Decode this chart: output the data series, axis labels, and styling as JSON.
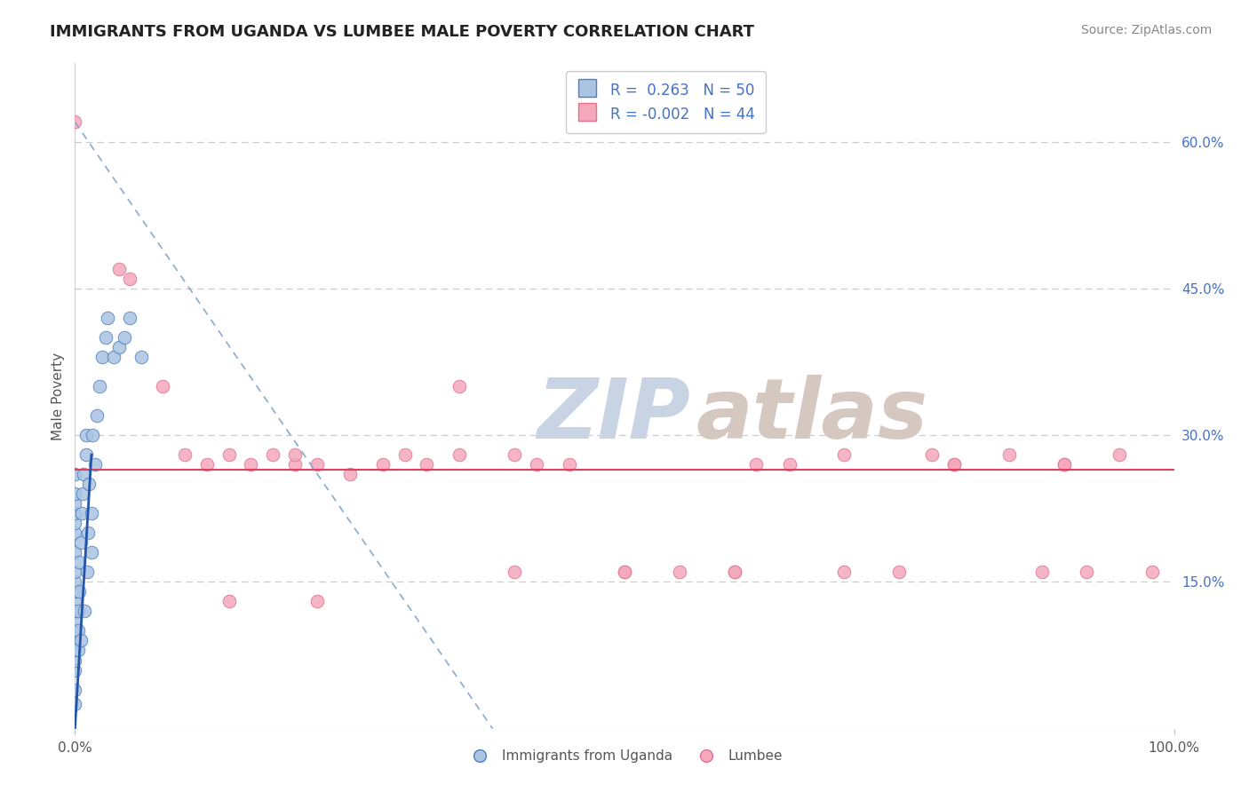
{
  "title": "IMMIGRANTS FROM UGANDA VS LUMBEE MALE POVERTY CORRELATION CHART",
  "source_text": "Source: ZipAtlas.com",
  "ylabel": "Male Poverty",
  "xlim": [
    0,
    1.0
  ],
  "ylim": [
    0,
    0.68
  ],
  "y_tick_vals_right": [
    0.6,
    0.45,
    0.3,
    0.15
  ],
  "legend_labels": [
    "Immigrants from Uganda",
    "Lumbee"
  ],
  "R_uganda": "0.263",
  "N_uganda": "50",
  "R_lumbee": "-0.002",
  "N_lumbee": "44",
  "blue_color": "#aac4e2",
  "pink_color": "#f5a8bc",
  "blue_edge_color": "#5080c0",
  "pink_edge_color": "#e07090",
  "trendline_blue_color": "#2255aa",
  "trendline_dashed_color": "#8aaad0",
  "trendline_pink_color": "#e04060",
  "watermark_zip_color": "#c8d4e4",
  "watermark_atlas_color": "#d4c8c0",
  "title_color": "#222222",
  "axis_label_color": "#555555",
  "right_tick_color": "#4472c4",
  "source_color": "#888888",
  "background_color": "#ffffff",
  "grid_color": "#cccccc",
  "pink_hline_y": 0.265,
  "blue_trend_solid_x0": 0.0,
  "blue_trend_solid_x1": 0.015,
  "blue_trend_solid_y0": 0.0,
  "blue_trend_solid_y1": 0.28,
  "blue_trend_dash_x0": 0.0,
  "blue_trend_dash_x1": 0.38,
  "blue_trend_dash_y0": 0.62,
  "blue_trend_dash_y1": 0.0,
  "blue_scatter_x": [
    0.0,
    0.0,
    0.0,
    0.0,
    0.0,
    0.0,
    0.0,
    0.0,
    0.0,
    0.0,
    0.0,
    0.0,
    0.0,
    0.0,
    0.0,
    0.0,
    0.0,
    0.0,
    0.0,
    0.0,
    0.003,
    0.003,
    0.003,
    0.004,
    0.004,
    0.005,
    0.005,
    0.006,
    0.007,
    0.008,
    0.009,
    0.01,
    0.01,
    0.011,
    0.012,
    0.013,
    0.015,
    0.015,
    0.016,
    0.018,
    0.02,
    0.022,
    0.025,
    0.028,
    0.03,
    0.035,
    0.04,
    0.045,
    0.05,
    0.06
  ],
  "blue_scatter_y": [
    0.025,
    0.04,
    0.06,
    0.07,
    0.08,
    0.09,
    0.1,
    0.11,
    0.12,
    0.13,
    0.14,
    0.15,
    0.16,
    0.18,
    0.2,
    0.21,
    0.22,
    0.23,
    0.24,
    0.26,
    0.08,
    0.1,
    0.12,
    0.14,
    0.17,
    0.09,
    0.19,
    0.22,
    0.24,
    0.26,
    0.12,
    0.28,
    0.3,
    0.16,
    0.2,
    0.25,
    0.18,
    0.22,
    0.3,
    0.27,
    0.32,
    0.35,
    0.38,
    0.4,
    0.42,
    0.38,
    0.39,
    0.4,
    0.42,
    0.38
  ],
  "pink_scatter_x": [
    0.0,
    0.04,
    0.05,
    0.08,
    0.1,
    0.12,
    0.14,
    0.16,
    0.18,
    0.2,
    0.22,
    0.25,
    0.28,
    0.3,
    0.32,
    0.35,
    0.4,
    0.42,
    0.45,
    0.5,
    0.55,
    0.6,
    0.62,
    0.65,
    0.7,
    0.75,
    0.78,
    0.8,
    0.85,
    0.88,
    0.9,
    0.92,
    0.95,
    0.98,
    0.14,
    0.2,
    0.22,
    0.35,
    0.4,
    0.5,
    0.6,
    0.7,
    0.8,
    0.9
  ],
  "pink_scatter_y": [
    0.62,
    0.47,
    0.46,
    0.35,
    0.28,
    0.27,
    0.28,
    0.27,
    0.28,
    0.27,
    0.27,
    0.26,
    0.27,
    0.28,
    0.27,
    0.35,
    0.28,
    0.27,
    0.27,
    0.16,
    0.16,
    0.16,
    0.27,
    0.27,
    0.16,
    0.16,
    0.28,
    0.27,
    0.28,
    0.16,
    0.27,
    0.16,
    0.28,
    0.16,
    0.13,
    0.28,
    0.13,
    0.28,
    0.16,
    0.16,
    0.16,
    0.28,
    0.27,
    0.27
  ]
}
